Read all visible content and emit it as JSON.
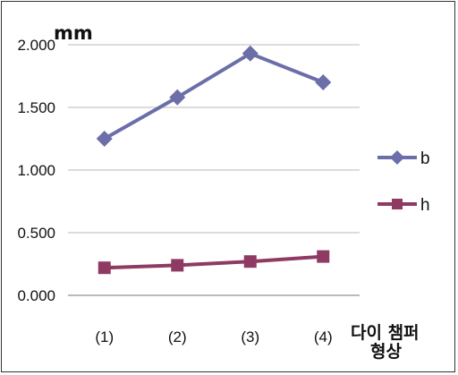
{
  "chart_data": {
    "type": "line",
    "title": "",
    "ylabel": "mm",
    "xlabel": [
      "다이 챔퍼",
      "형상"
    ],
    "categories": [
      "(1)",
      "(2)",
      "(3)",
      "(4)"
    ],
    "ylim": [
      0,
      2
    ],
    "yticks": [
      0,
      0.5,
      1,
      1.5,
      2
    ],
    "ytick_labels": [
      "0.000",
      "0.500",
      "1.000",
      "1.500",
      "2.000"
    ],
    "grid": "horizontal",
    "legend": "right",
    "series": [
      {
        "name": "b",
        "values": [
          1.25,
          1.58,
          1.93,
          1.7
        ],
        "color": "#6b6ea8",
        "marker": "diamond"
      },
      {
        "name": "h",
        "values": [
          0.22,
          0.24,
          0.27,
          0.31
        ],
        "color": "#8e3a62",
        "marker": "square"
      }
    ]
  }
}
